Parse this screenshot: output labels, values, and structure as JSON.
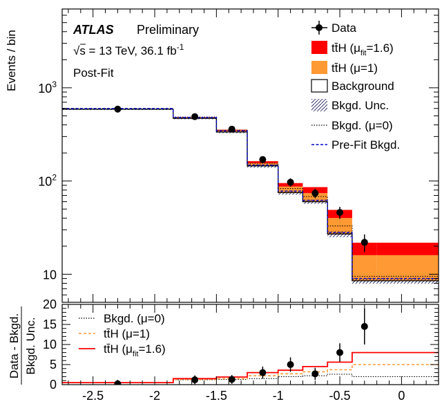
{
  "chart_data": [
    {
      "type": "bar",
      "panel": "main",
      "ylabel": "Events / bin",
      "yscale": "log",
      "ylim": [
        5,
        7000
      ],
      "xlim": [
        -2.75,
        0.3
      ],
      "ytick_labels": [
        "10",
        "10",
        "10"
      ],
      "ytick_exponents": [
        "",
        "2",
        "3"
      ],
      "ytick_values": [
        10,
        100,
        1000
      ],
      "annotations": {
        "experiment": "ATLAS",
        "status": "Preliminary",
        "energy_prefix": "√s = 13 TeV, 36.1 fb",
        "energy_sup": "-1",
        "fit_state": "Post-Fit"
      },
      "bin_edges": [
        -2.75,
        -1.85,
        -1.5,
        -1.25,
        -1.0,
        -0.8,
        -0.6,
        -0.4,
        -0.2,
        0.3
      ],
      "background": [
        590,
        470,
        335,
        145,
        75,
        60,
        27,
        8.5,
        8.5
      ],
      "tth_mu1": [
        0,
        8,
        12,
        10,
        12,
        14,
        13,
        7.5,
        7.5
      ],
      "tth_mufit": [
        0,
        5,
        8,
        8,
        8,
        12,
        9,
        5.8,
        5.8
      ],
      "bkg_unc": [
        12,
        10,
        9,
        6,
        3.5,
        3,
        2,
        0.6,
        0.6
      ],
      "bkg_mu0": [
        590,
        485,
        350,
        155,
        83,
        68,
        33,
        9.5,
        9.5
      ],
      "prefit_bkg": [
        600,
        480,
        345,
        148,
        78,
        62,
        28,
        9,
        9
      ],
      "data_x": [
        -2.3,
        -1.675,
        -1.375,
        -1.125,
        -0.9,
        -0.7,
        -0.5,
        -0.3
      ],
      "data_y": [
        590,
        490,
        360,
        170,
        97,
        74,
        46,
        22
      ],
      "data_err": [
        24,
        22,
        19,
        13,
        10,
        8.6,
        6.8,
        4.7
      ],
      "legend": {
        "data": "Data",
        "tth_fit_main": "tt̄H (μ",
        "tth_fit_sub": "fit",
        "tth_fit_tail": "=1.6)",
        "tth_mu1": "tt̄H (μ=1)",
        "background": "Background",
        "bkg_unc": "Bkgd. Unc.",
        "bkg_mu0": "Bkgd. (μ=0)",
        "prefit": "Pre-Fit Bkgd."
      },
      "colors": {
        "tth_fit": "#ff0000",
        "tth_mu1": "#ff9933",
        "background": "#ffffff",
        "prefit": "#0000cc",
        "data": "#000000"
      }
    },
    {
      "type": "line",
      "panel": "ratio",
      "ylabel_top": "Data - Bkgd.",
      "ylabel_bottom": "Bkgd. Unc.",
      "ylim": [
        0,
        20
      ],
      "ytick_labels": [
        "0",
        "5",
        "10",
        "15",
        "20"
      ],
      "xtick_labels": [
        "-2.5",
        "-2",
        "-1.5",
        "-1",
        "-0.5",
        "0"
      ],
      "xtick_values": [
        -2.5,
        -2,
        -1.5,
        -1,
        -0.5,
        0
      ],
      "bin_edges": [
        -2.75,
        -1.85,
        -1.5,
        -1.25,
        -1.0,
        -0.8,
        -0.6,
        -0.4,
        -0.2,
        0.3
      ],
      "bkg_mu0": [
        0.5,
        1.2,
        1.3,
        1.5,
        2.0,
        2.2,
        2.6,
        2.0,
        2.0
      ],
      "tth_mu1": [
        0.5,
        1.3,
        1.5,
        2.2,
        2.7,
        3.2,
        3.7,
        5.0,
        5.0
      ],
      "tth_mufit": [
        0.5,
        1.5,
        1.9,
        3.0,
        3.6,
        4.5,
        5.6,
        8.0,
        8.0
      ],
      "data_x": [
        -2.3,
        -1.675,
        -1.375,
        -1.125,
        -0.9,
        -0.7,
        -0.5,
        -0.3
      ],
      "data_y": [
        0.2,
        1.2,
        1.3,
        3.0,
        5.0,
        2.7,
        8.0,
        14.5
      ],
      "data_err": [
        1.0,
        1.1,
        1.1,
        1.5,
        1.8,
        1.5,
        2.3,
        4.5
      ],
      "legend": {
        "bkg_mu0": "Bkgd. (μ=0)",
        "tth_mu1": "tt̄H (μ=1)",
        "tth_fit_main": "tt̄H (μ",
        "tth_fit_sub": "fit",
        "tth_fit_tail": "=1.6)"
      },
      "colors": {
        "bkg_mu0": "#000000",
        "tth_mu1": "#ff9933",
        "tth_fit": "#ff0000"
      }
    }
  ]
}
